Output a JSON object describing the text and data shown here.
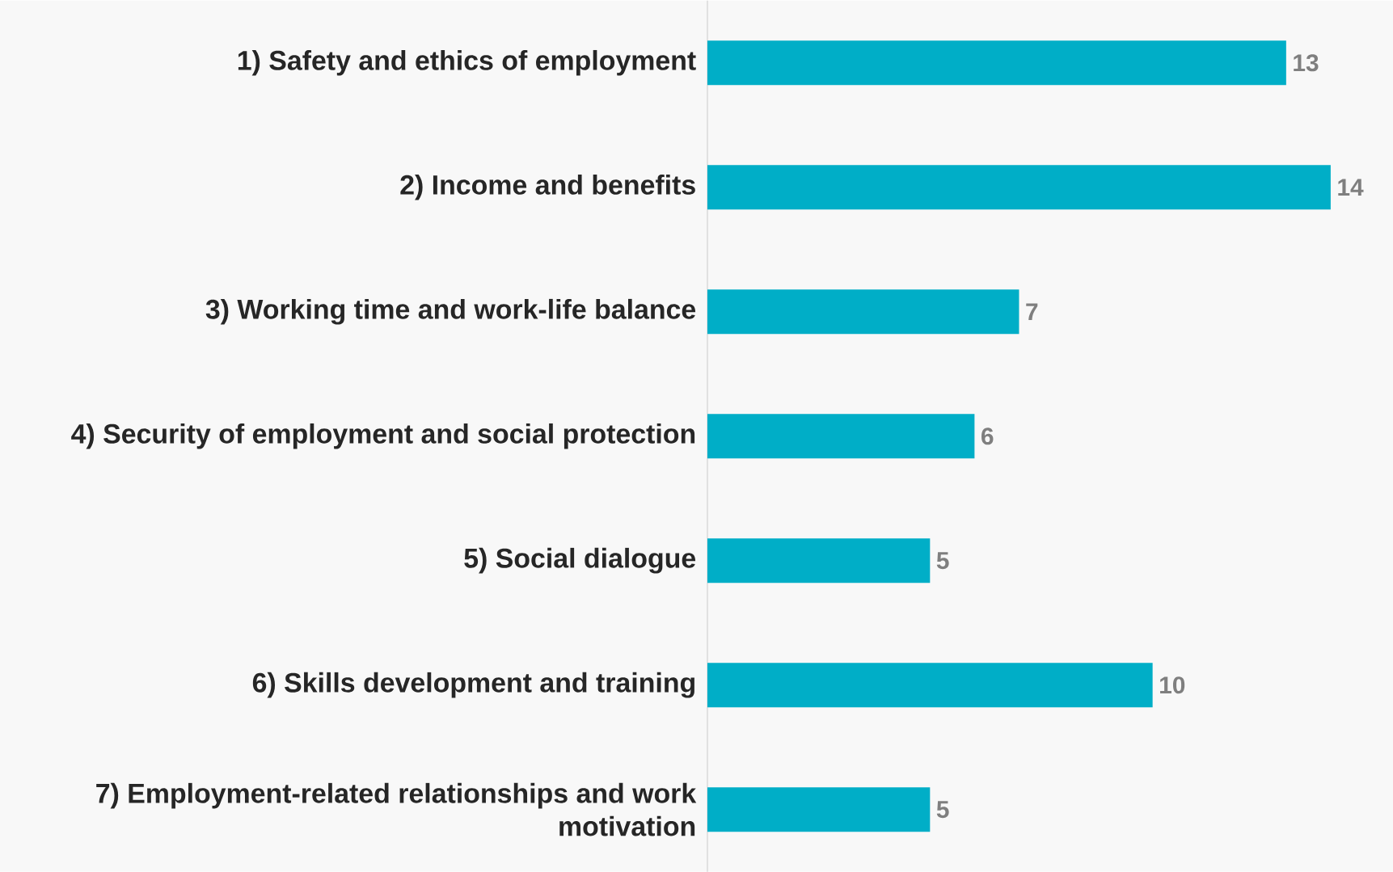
{
  "chart_data": {
    "type": "bar",
    "orientation": "horizontal",
    "data_labels": true,
    "color": "#00aec7",
    "categories": [
      "1) Safety and ethics of employment",
      "2) Income and benefits",
      "3) Working time and work-life balance",
      "4) Security of employment and social protection",
      "5) Social dialogue",
      "6) Skills development and training",
      "7) Employment-related relationships and work motivation"
    ],
    "values": [
      13,
      14,
      7,
      6,
      5,
      10,
      5
    ]
  }
}
